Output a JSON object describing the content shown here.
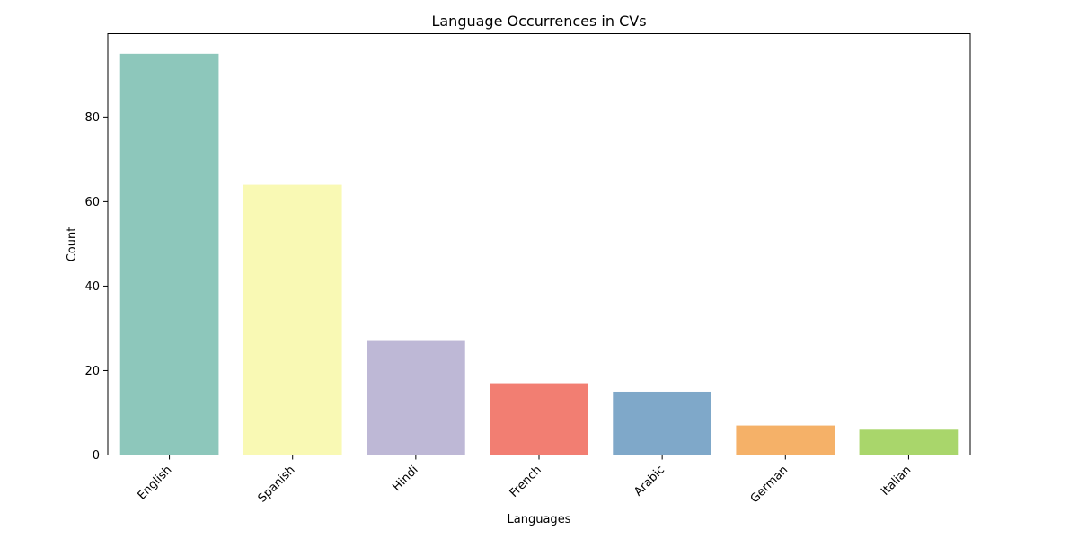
{
  "chart_data": {
    "type": "bar",
    "title": "Language Occurrences in CVs",
    "xlabel": "Languages",
    "ylabel": "Count",
    "categories": [
      "English",
      "Spanish",
      "Hindi",
      "French",
      "Arabic",
      "German",
      "Italian"
    ],
    "values": [
      95,
      64,
      27,
      17,
      15,
      7,
      6
    ],
    "colors": [
      "#8dc7bb",
      "#f9f9b4",
      "#beb8d6",
      "#f27e72",
      "#7fa8c9",
      "#f5b168",
      "#a9d66b"
    ],
    "ylim": [
      0,
      99.75
    ],
    "yticks": [
      0,
      20,
      40,
      60,
      80
    ],
    "grid": false,
    "legend": "none"
  }
}
